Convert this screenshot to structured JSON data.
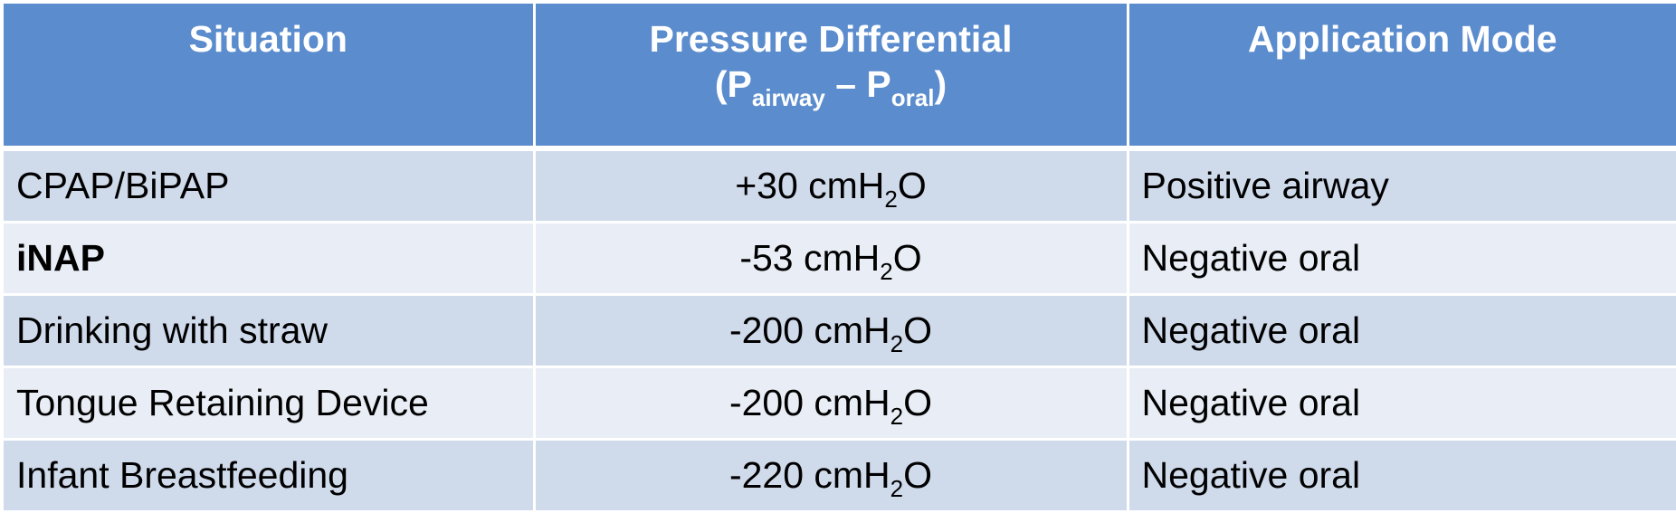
{
  "header": {
    "situation": "Situation",
    "pressure_line1": "Pressure Differential",
    "pressure_open": "(P",
    "pressure_sub1": "airway",
    "pressure_mid": " – P",
    "pressure_sub2": "oral",
    "pressure_close": ")",
    "mode": "Application Mode"
  },
  "rows": [
    {
      "situation": "CPAP/BiPAP",
      "value_pre": "+30 cmH",
      "value_sub": "2",
      "value_post": "O",
      "mode": "Positive airway"
    },
    {
      "situation": "iNAP",
      "value_pre": "-53 cmH",
      "value_sub": "2",
      "value_post": "O",
      "mode": "Negative oral"
    },
    {
      "situation": "Drinking with straw",
      "value_pre": "-200 cmH",
      "value_sub": "2",
      "value_post": "O",
      "mode": "Negative oral"
    },
    {
      "situation": "Tongue Retaining Device",
      "value_pre": "-200 cmH",
      "value_sub": "2",
      "value_post": "O",
      "mode": "Negative oral"
    },
    {
      "situation": "Infant Breastfeeding",
      "value_pre": "-220 cmH",
      "value_sub": "2",
      "value_post": "O",
      "mode": "Negative oral"
    }
  ],
  "colors": {
    "header_bg": "#5b8ccd",
    "row_odd_bg": "#cfdaeb",
    "row_even_bg": "#e9eef6"
  }
}
